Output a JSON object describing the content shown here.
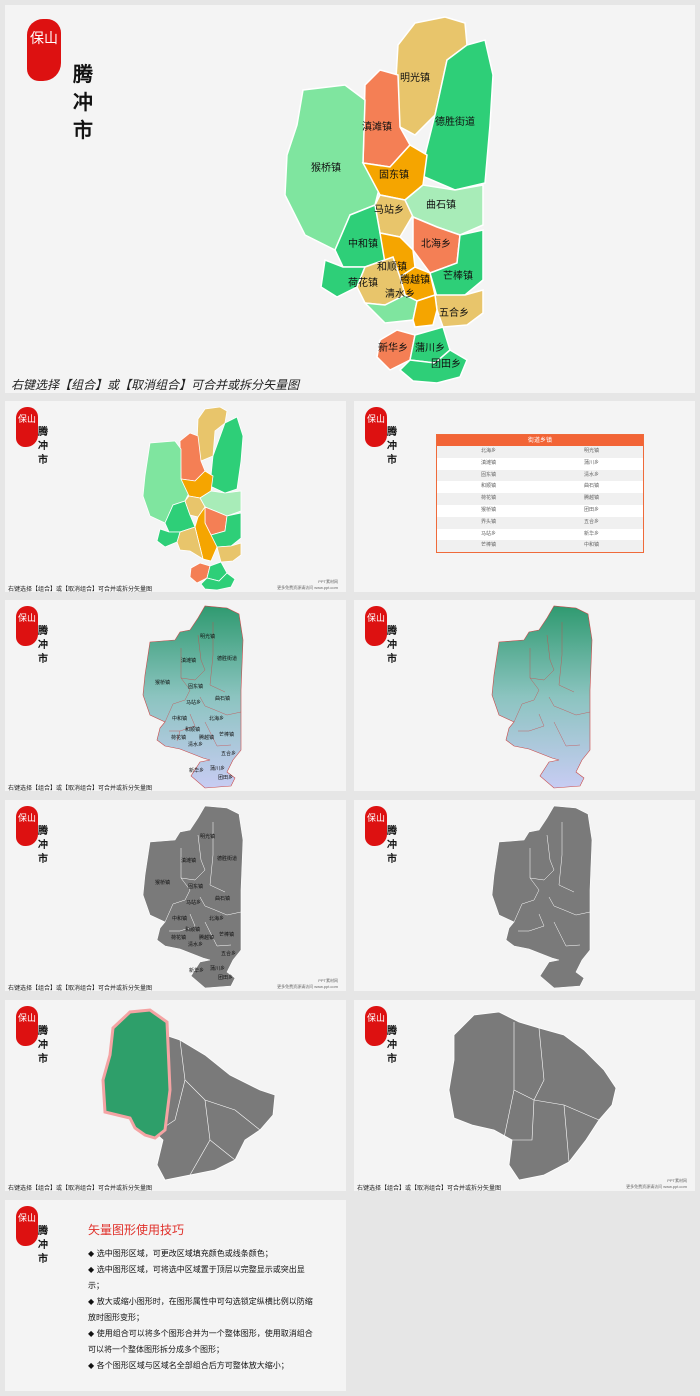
{
  "seal_text": "保山",
  "title": "腾冲市",
  "caption": "右键选择【组合】或【取消组合】可合并或拆分矢量图",
  "watermark": [
    "PPT素材网",
    "更多免费资源请访问 www.ppt.com"
  ],
  "towns": [
    "明光镇",
    "滇滩镇",
    "德胜街道",
    "猴桥镇",
    "固东镇",
    "马站乡",
    "曲石镇",
    "中和镇",
    "北海乡",
    "和顺镇",
    "荷花镇",
    "腾越镇",
    "芒棒镇",
    "清水乡",
    "五合乡",
    "新华乡",
    "蒲川乡",
    "团田乡"
  ],
  "table": {
    "header": "街道乡镇",
    "rows": [
      [
        "北海乡",
        "明光镇"
      ],
      [
        "滇滩镇",
        "蒲川乡"
      ],
      [
        "固东镇",
        "清水乡"
      ],
      [
        "和顺镇",
        "曲石镇"
      ],
      [
        "荷花镇",
        "腾越镇"
      ],
      [
        "猴桥镇",
        "团田乡"
      ],
      [
        "界头镇",
        "五合乡"
      ],
      [
        "马站乡",
        "新华乡"
      ],
      [
        "芒棒镇",
        "中和镇"
      ]
    ]
  },
  "tips": {
    "title": "矢量图形使用技巧",
    "items": [
      "选中图形区域，可更改区域填充颜色或线条颜色；",
      "选中图形区域，可将选中区域置于顶层以完整显示或突出显示；",
      "放大或缩小图形时，在图形属性中可勾选锁定纵横比例以防缩放时图形变形；",
      "使用组合可以将多个图形合并为一个整体图形，使用取消组合可以将一个整体图形拆分成多个图形；",
      "各个图形区域与区域名全部组合后方可整体放大缩小；"
    ]
  },
  "colors": {
    "orange_red": "#f47f55",
    "yellow": "#e8c56b",
    "green": "#2ecf78",
    "light_green": "#7fe59f",
    "orange": "#f5a500",
    "pale_green": "#a8ecb8",
    "gray": "#7a7a7a",
    "highlight": "#2e9f6a",
    "accent_red": "#e0302a"
  }
}
